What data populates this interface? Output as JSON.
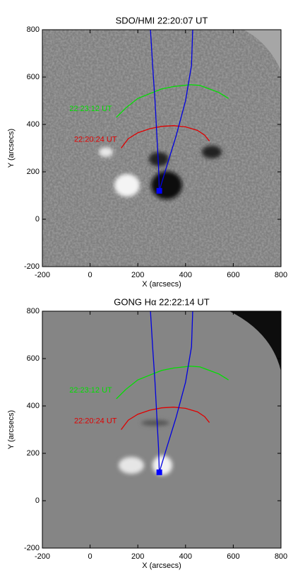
{
  "chart_data": [
    {
      "type": "line",
      "title": "SDO/HMI  22:20:07 UT",
      "x_label": "X (arcsecs)",
      "y_label": "Y (arcsecs)",
      "xlim": [
        -200,
        800
      ],
      "ylim": [
        -200,
        800
      ],
      "xticks": [
        -200,
        0,
        200,
        400,
        600,
        800
      ],
      "yticks": [
        -200,
        0,
        200,
        400,
        600,
        800
      ],
      "series": [
        {
          "name": "22:23:12 UT",
          "color": "#00e000",
          "x": [
            110,
            150,
            200,
            250,
            300,
            350,
            420,
            460,
            500,
            540,
            580
          ],
          "values": [
            430,
            470,
            510,
            530,
            550,
            560,
            568,
            565,
            550,
            535,
            510
          ]
        },
        {
          "name": "22:20:24 UT",
          "color": "#e00000",
          "x": [
            130,
            160,
            200,
            250,
            300,
            350,
            400,
            450,
            480,
            500
          ],
          "values": [
            300,
            340,
            365,
            382,
            392,
            395,
            390,
            375,
            355,
            330
          ]
        },
        {
          "color": "#0000e0",
          "x": [
            253,
            262,
            272,
            280,
            287,
            290
          ],
          "values": [
            800,
            650,
            500,
            350,
            220,
            120
          ]
        },
        {
          "color": "#0000e0",
          "x": [
            430,
            425,
            400,
            360,
            320,
            290
          ],
          "values": [
            800,
            650,
            500,
            350,
            220,
            120
          ]
        }
      ],
      "markers": [
        {
          "x": 290,
          "y": 120,
          "color": "#0000ff"
        }
      ]
    },
    {
      "type": "line",
      "title": "GONG Hα  22:22:14 UT",
      "x_label": "X (arcsecs)",
      "y_label": "Y (arcsecs)",
      "xlim": [
        -200,
        800
      ],
      "ylim": [
        -200,
        800
      ],
      "xticks": [
        -200,
        0,
        200,
        400,
        600,
        800
      ],
      "yticks": [
        -200,
        0,
        200,
        400,
        600,
        800
      ],
      "series": [
        {
          "name": "22:23:12 UT",
          "color": "#00e000",
          "x": [
            110,
            150,
            200,
            250,
            300,
            350,
            420,
            460,
            500,
            540,
            580
          ],
          "values": [
            430,
            470,
            510,
            530,
            550,
            560,
            568,
            565,
            550,
            535,
            510
          ]
        },
        {
          "name": "22:20:24 UT",
          "color": "#e00000",
          "x": [
            130,
            160,
            200,
            250,
            300,
            350,
            400,
            450,
            480,
            500
          ],
          "values": [
            300,
            340,
            365,
            382,
            392,
            395,
            390,
            375,
            355,
            330
          ]
        },
        {
          "color": "#0000e0",
          "x": [
            253,
            262,
            272,
            280,
            287,
            290
          ],
          "values": [
            800,
            650,
            500,
            350,
            220,
            120
          ]
        },
        {
          "color": "#0000e0",
          "x": [
            430,
            425,
            400,
            360,
            320,
            290
          ],
          "values": [
            800,
            650,
            500,
            350,
            220,
            120
          ]
        }
      ],
      "markers": [
        {
          "x": 290,
          "y": 120,
          "color": "#0000ff"
        }
      ]
    }
  ]
}
